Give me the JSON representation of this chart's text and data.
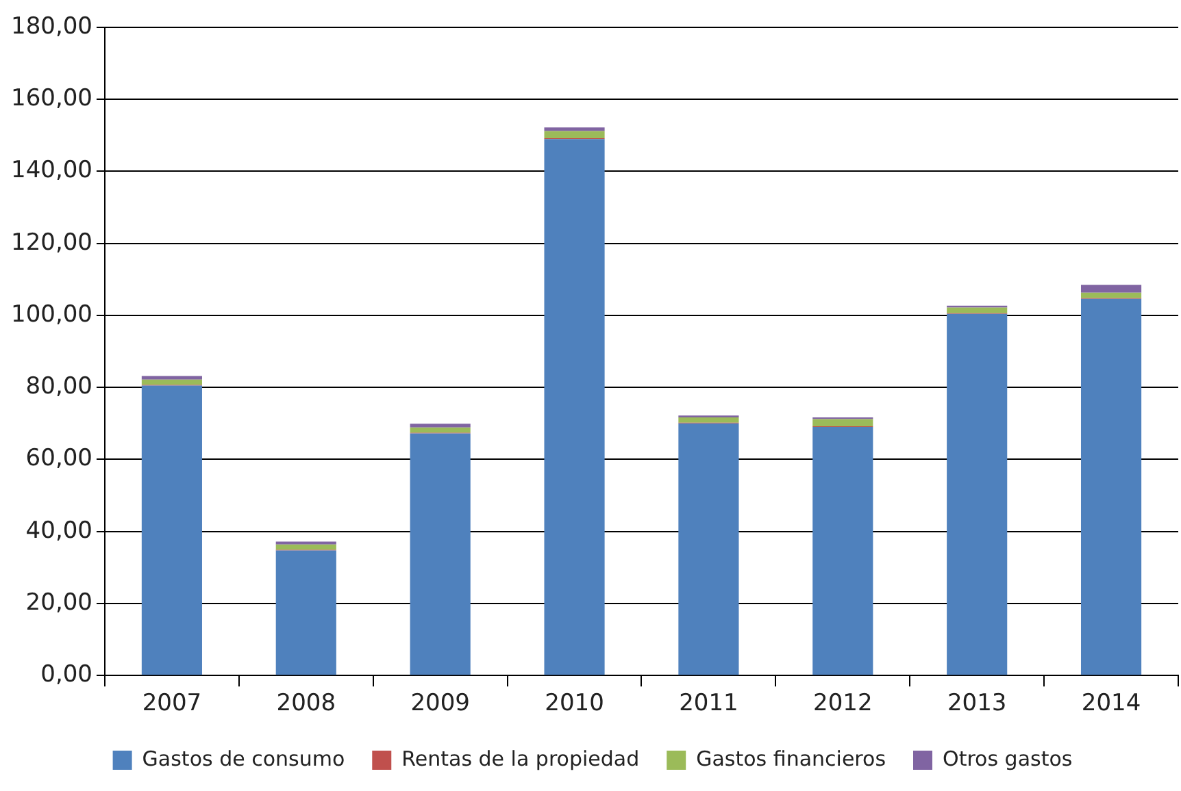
{
  "chart_data": {
    "type": "bar",
    "stacked": true,
    "categories": [
      "2007",
      "2008",
      "2009",
      "2010",
      "2011",
      "2012",
      "2013",
      "2014"
    ],
    "series": [
      {
        "name": "Gastos de consumo",
        "color": "#4f81bd",
        "values": [
          80.5,
          34.7,
          67.2,
          149,
          70,
          69,
          100.4,
          104.6
        ]
      },
      {
        "name": "Rentas de la propiedad",
        "color": "#c0504d",
        "values": [
          0.2,
          0.2,
          0.2,
          0.2,
          0.2,
          0.2,
          0.2,
          0.2
        ]
      },
      {
        "name": "Gastos financieros",
        "color": "#9bbb59",
        "values": [
          1.5,
          1.5,
          1.5,
          2,
          1.5,
          2,
          1.6,
          1.5
        ]
      },
      {
        "name": "Otros gastos",
        "color": "#8064a2",
        "values": [
          1,
          0.8,
          1,
          1,
          0.5,
          0.5,
          0.5,
          2.2
        ]
      }
    ],
    "ylim": [
      0,
      180
    ],
    "yticks": [
      {
        "value": 0,
        "label": "0,00"
      },
      {
        "value": 20,
        "label": "20,00"
      },
      {
        "value": 40,
        "label": "40,00"
      },
      {
        "value": 60,
        "label": "60,00"
      },
      {
        "value": 80,
        "label": "80,00"
      },
      {
        "value": 100,
        "label": "100,00"
      },
      {
        "value": 120,
        "label": "120,00"
      },
      {
        "value": 140,
        "label": "140,00"
      },
      {
        "value": 160,
        "label": "160,00"
      },
      {
        "value": 180,
        "label": "180,00"
      }
    ],
    "grid": "y",
    "legend": "bottom"
  }
}
